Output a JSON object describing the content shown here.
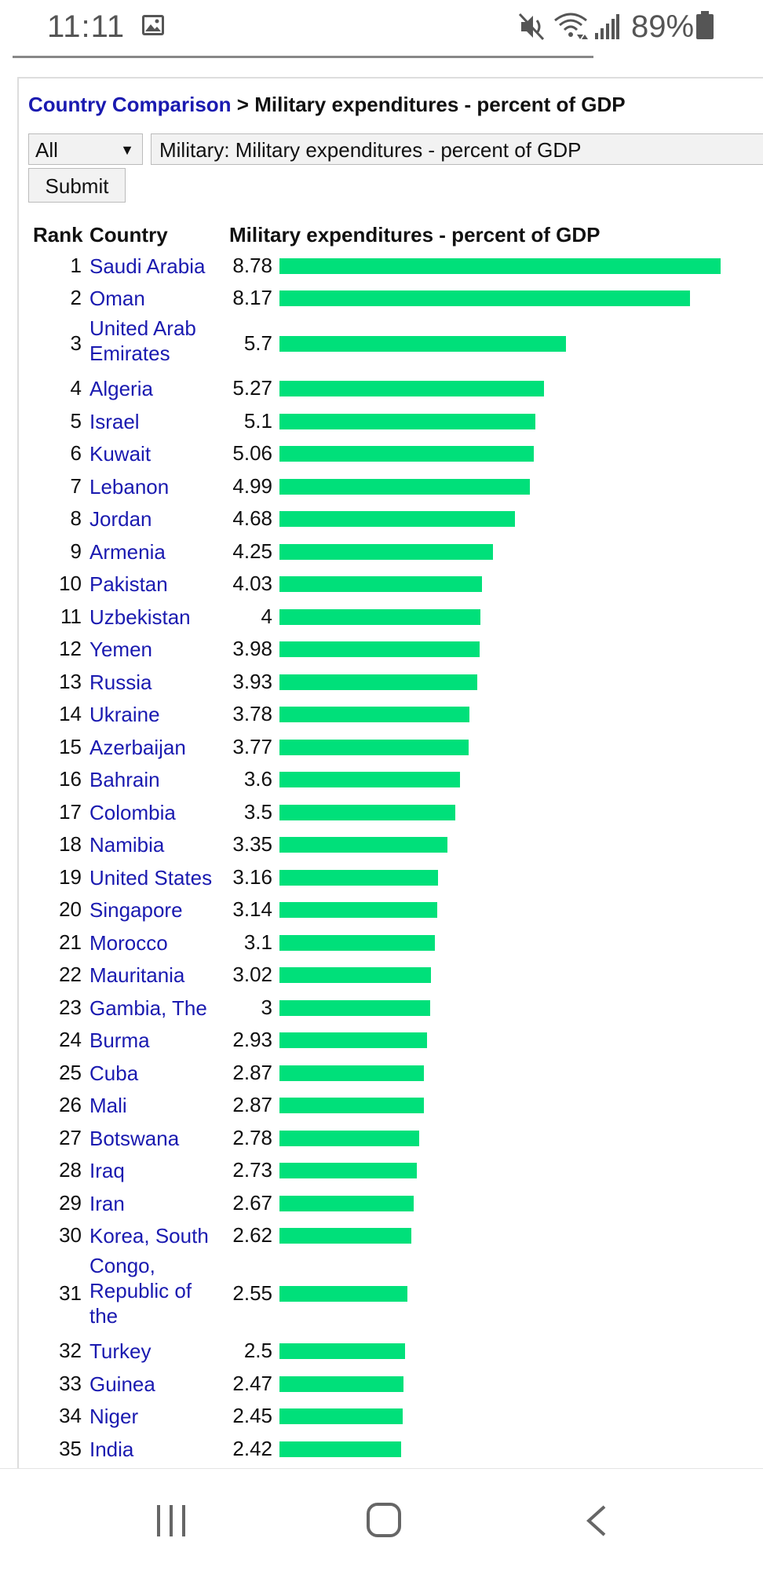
{
  "status_bar": {
    "time": "11:11",
    "battery_percent": "89%",
    "icons": [
      "gallery-icon",
      "mute-icon",
      "wifi-icon",
      "signal-icon",
      "battery-icon"
    ]
  },
  "breadcrumb": {
    "link_label": "Country Comparison",
    "rest": " > Military expenditures - percent of GDP"
  },
  "controls": {
    "region_value": "All",
    "field_value": "Military: Military expenditures - percent of GDP",
    "submit_label": "Submit"
  },
  "table": {
    "headers": {
      "rank": "Rank",
      "country": "Country",
      "value": "Military expenditures - percent of GDP"
    },
    "bar_color": "#00e07a",
    "link_color": "#1a1ab0",
    "rows": [
      {
        "rank": "1",
        "country": "Saudi Arabia",
        "value": "8.78",
        "amount": 8.78
      },
      {
        "rank": "2",
        "country": "Oman",
        "value": "8.17",
        "amount": 8.17
      },
      {
        "rank": "3",
        "country": "United Arab Emirates",
        "value": "5.7",
        "amount": 5.7
      },
      {
        "rank": "4",
        "country": "Algeria",
        "value": "5.27",
        "amount": 5.27
      },
      {
        "rank": "5",
        "country": "Israel",
        "value": "5.1",
        "amount": 5.1
      },
      {
        "rank": "6",
        "country": "Kuwait",
        "value": "5.06",
        "amount": 5.06
      },
      {
        "rank": "7",
        "country": "Lebanon",
        "value": "4.99",
        "amount": 4.99
      },
      {
        "rank": "8",
        "country": "Jordan",
        "value": "4.68",
        "amount": 4.68
      },
      {
        "rank": "9",
        "country": "Armenia",
        "value": "4.25",
        "amount": 4.25
      },
      {
        "rank": "10",
        "country": "Pakistan",
        "value": "4.03",
        "amount": 4.03
      },
      {
        "rank": "11",
        "country": "Uzbekistan",
        "value": "4",
        "amount": 4
      },
      {
        "rank": "12",
        "country": "Yemen",
        "value": "3.98",
        "amount": 3.98
      },
      {
        "rank": "13",
        "country": "Russia",
        "value": "3.93",
        "amount": 3.93
      },
      {
        "rank": "14",
        "country": "Ukraine",
        "value": "3.78",
        "amount": 3.78
      },
      {
        "rank": "15",
        "country": "Azerbaijan",
        "value": "3.77",
        "amount": 3.77
      },
      {
        "rank": "16",
        "country": "Bahrain",
        "value": "3.6",
        "amount": 3.6
      },
      {
        "rank": "17",
        "country": "Colombia",
        "value": "3.5",
        "amount": 3.5
      },
      {
        "rank": "18",
        "country": "Namibia",
        "value": "3.35",
        "amount": 3.35
      },
      {
        "rank": "19",
        "country": "United States",
        "value": "3.16",
        "amount": 3.16
      },
      {
        "rank": "20",
        "country": "Singapore",
        "value": "3.14",
        "amount": 3.14
      },
      {
        "rank": "21",
        "country": "Morocco",
        "value": "3.1",
        "amount": 3.1
      },
      {
        "rank": "22",
        "country": "Mauritania",
        "value": "3.02",
        "amount": 3.02
      },
      {
        "rank": "23",
        "country": "Gambia, The",
        "value": "3",
        "amount": 3
      },
      {
        "rank": "24",
        "country": "Burma",
        "value": "2.93",
        "amount": 2.93
      },
      {
        "rank": "25",
        "country": "Cuba",
        "value": "2.87",
        "amount": 2.87
      },
      {
        "rank": "26",
        "country": "Mali",
        "value": "2.87",
        "amount": 2.87
      },
      {
        "rank": "27",
        "country": "Botswana",
        "value": "2.78",
        "amount": 2.78
      },
      {
        "rank": "28",
        "country": "Iraq",
        "value": "2.73",
        "amount": 2.73
      },
      {
        "rank": "29",
        "country": "Iran",
        "value": "2.67",
        "amount": 2.67
      },
      {
        "rank": "30",
        "country": "Korea, South",
        "value": "2.62",
        "amount": 2.62
      },
      {
        "rank": "31",
        "country": "Congo, Republic of the",
        "value": "2.55",
        "amount": 2.55
      },
      {
        "rank": "32",
        "country": "Turkey",
        "value": "2.5",
        "amount": 2.5
      },
      {
        "rank": "33",
        "country": "Guinea",
        "value": "2.47",
        "amount": 2.47
      },
      {
        "rank": "34",
        "country": "Niger",
        "value": "2.45",
        "amount": 2.45
      },
      {
        "rank": "35",
        "country": "India",
        "value": "2.42",
        "amount": 2.42
      }
    ]
  },
  "nav_bar": {
    "icons": [
      "recents-icon",
      "home-icon",
      "back-icon"
    ]
  }
}
